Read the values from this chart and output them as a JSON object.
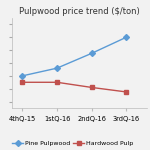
{
  "title": "Pulpwood price trend ($/ton)",
  "x_labels": [
    "4thQ-15",
    "1stQ-16",
    "2ndQ-16",
    "3rdQ-16"
  ],
  "pine": [
    18.0,
    19.2,
    21.5,
    24.0
  ],
  "hardwood": [
    17.0,
    17.0,
    16.2,
    15.5
  ],
  "pine_color": "#5B9BD5",
  "hardwood_color": "#C0504D",
  "legend_pine": "Pine Pulpwood",
  "legend_hardwood": "Hardwood Pulp",
  "ylim": [
    13,
    27
  ],
  "bg_color": "#F2F2F2",
  "title_fontsize": 6.0,
  "axis_fontsize": 4.8,
  "legend_fontsize": 4.5,
  "line_width": 1.0,
  "marker_size": 3.0
}
